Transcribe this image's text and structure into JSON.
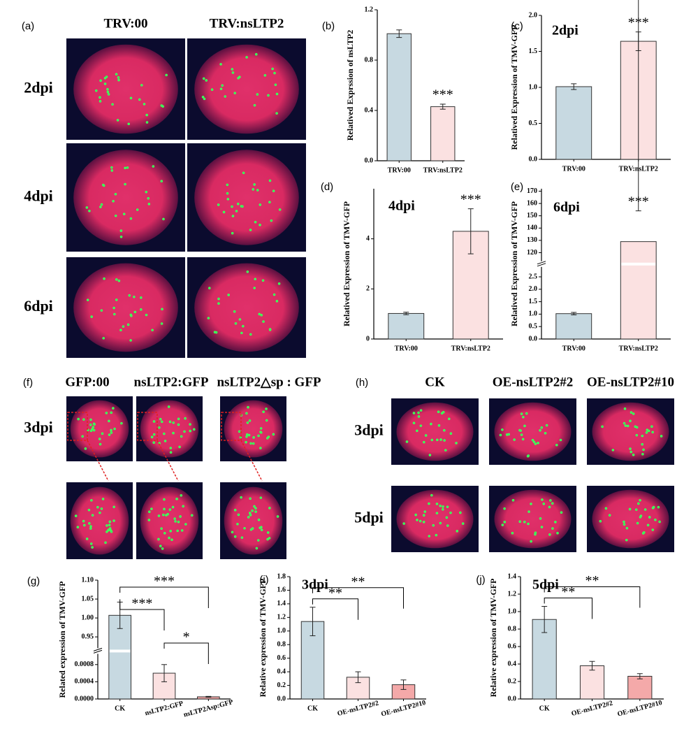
{
  "photo_panels": [
    {
      "label": "(a)",
      "columns": [
        "TRV:00",
        "TRV:nsLTP2"
      ],
      "rows": [
        "2dpi",
        "4dpi",
        "6dpi"
      ]
    },
    {
      "label": "(f)",
      "columns": [
        "GFP:00",
        "nsLTP2:GFP",
        "nsLTP2△sp : GFP"
      ],
      "rows": [
        "3dpi"
      ]
    },
    {
      "label": "(h)",
      "columns": [
        "CK",
        "OE-nsLTP2#2",
        "OE-nsLTP2#10"
      ],
      "rows": [
        "3dpi",
        "5dpi"
      ]
    }
  ],
  "chart_data": [
    {
      "type": "bar",
      "panel": "(b)",
      "ylabel": "Relatived Exprssion of nsLTP2",
      "categories": [
        "TRV:00",
        "TRV:nsLTP2"
      ],
      "values": [
        1.01,
        0.43
      ],
      "errors": [
        0.03,
        0.02
      ],
      "colors": [
        "#c7d9e1",
        "#fbe1e1"
      ],
      "ylim": [
        0,
        1.2
      ],
      "yticks": [
        {
          "value": 0,
          "label": "0.0"
        },
        0.4,
        0.8,
        1.2
      ],
      "annotations": [
        {
          "text": "***",
          "index": 1
        }
      ]
    },
    {
      "type": "bar",
      "panel": "(c)",
      "title": "2dpi",
      "ylabel": "Relatived Expression of TMV-GFP",
      "categories": [
        "TRV:00",
        "TRV:nsLTP2"
      ],
      "values": [
        1.01,
        1.64
      ],
      "errors": [
        0.04,
        0.13
      ],
      "colors": [
        "#c7d9e1",
        "#fbe1e1"
      ],
      "ylim": [
        0,
        2
      ],
      "yticks": [
        {
          "value": 0,
          "label": "0.0"
        },
        0.5,
        {
          "value": 1,
          "label": "1.0"
        },
        1.5,
        {
          "value": 2,
          "label": "2.0"
        }
      ],
      "annotations": [
        {
          "text": "***",
          "index": 1
        }
      ]
    },
    {
      "type": "bar",
      "panel": "(d)",
      "title": "4dpi",
      "ylabel": "Relatived Expression of TMV-GFP",
      "categories": [
        "TRV:00",
        "TRV:nsLTP2"
      ],
      "values": [
        1.02,
        4.3
      ],
      "errors": [
        0.05,
        0.9
      ],
      "colors": [
        "#c7d9e1",
        "#fbe1e1"
      ],
      "ylim": [
        0,
        6
      ],
      "yticks": [
        0,
        2,
        4
      ],
      "annotations": [
        {
          "text": "***",
          "index": 1
        }
      ]
    },
    {
      "type": "bar",
      "panel": "(e)",
      "title": "6dpi",
      "ylabel": "Relatived Expression of TMV-GFP",
      "categories": [
        "TRV:00",
        "TRV:nsLTP2"
      ],
      "values": [
        1.02,
        129
      ],
      "errors": [
        0.05,
        25
      ],
      "colors": [
        "#c7d9e1",
        "#fbe1e1"
      ],
      "axis_segments": [
        {
          "ylim": [
            0,
            2.9
          ],
          "yticks": [
            {
              "value": 0,
              "label": "0.0"
            },
            0.5,
            {
              "value": 1,
              "label": "1.0"
            },
            1.5,
            {
              "value": 2,
              "label": "2.0"
            },
            2.5
          ]
        },
        {
          "ylim": [
            113,
            172
          ],
          "yticks": [
            120,
            130,
            140,
            150,
            160,
            170
          ]
        }
      ],
      "annotations": [
        {
          "text": "***",
          "index": 1
        }
      ]
    },
    {
      "type": "bar",
      "panel": "(g)",
      "ylabel": "Related expression of TMV-GFP",
      "categories": [
        "CK",
        "nsLTP2:GFP",
        "nsLTP2Asp:GFP"
      ],
      "values": [
        1.007,
        0.0006,
        5e-05
      ],
      "errors": [
        0.035,
        0.0002,
        1e-05
      ],
      "colors": [
        "#c7d9e1",
        "#fbe1e1",
        "#f4a9a9"
      ],
      "axis_segments": [
        {
          "ylim": [
            0,
            0.00105
          ],
          "yticks": [
            {
              "value": 0,
              "label": "0.0000"
            },
            {
              "value": 0.0004,
              "label": "0.0004"
            },
            {
              "value": 0.0008,
              "label": "0.0008"
            }
          ]
        },
        {
          "ylim": [
            0.92,
            1.1
          ],
          "yticks": [
            0.95,
            {
              "value": 1,
              "label": "1.00"
            },
            1.05,
            {
              "value": 1.1,
              "label": "1.10"
            }
          ]
        }
      ],
      "comparisons": [
        {
          "pair": [
            0,
            1
          ],
          "text": "***"
        },
        {
          "pair": [
            0,
            2
          ],
          "text": "***"
        },
        {
          "pair": [
            1,
            2
          ],
          "text": "*"
        }
      ]
    },
    {
      "type": "bar",
      "panel": "(i)",
      "title": "3dpi",
      "ylabel": "Relative expression of TMV-GFP",
      "categories": [
        "CK",
        "OE-nsLTP2#2",
        "OE-nsLTP2#10"
      ],
      "values": [
        1.14,
        0.32,
        0.21
      ],
      "errors": [
        0.21,
        0.08,
        0.07
      ],
      "colors": [
        "#c7d9e1",
        "#fbe1e1",
        "#f4a9a9"
      ],
      "ylim": [
        0,
        1.8
      ],
      "yticks": [
        {
          "value": 0,
          "label": "0.0"
        },
        0.2,
        0.4,
        0.6,
        0.8,
        {
          "value": 1,
          "label": "1.0"
        },
        1.2,
        1.4,
        1.6,
        1.8
      ],
      "comparisons": [
        {
          "pair": [
            0,
            1
          ],
          "text": "**"
        },
        {
          "pair": [
            0,
            2
          ],
          "text": "**"
        }
      ]
    },
    {
      "type": "bar",
      "panel": "(j)",
      "title": "5dpi",
      "ylabel": "Relative expression of TMV-GFP",
      "categories": [
        "CK",
        "OE-nsLTP2#2",
        "OE-nsLTP2#10"
      ],
      "values": [
        0.91,
        0.38,
        0.26
      ],
      "errors": [
        0.15,
        0.05,
        0.03
      ],
      "colors": [
        "#c7d9e1",
        "#fbe1e1",
        "#f4a9a9"
      ],
      "ylim": [
        0,
        1.4
      ],
      "yticks": [
        {
          "value": 0,
          "label": "0.0"
        },
        0.2,
        0.4,
        0.6,
        0.8,
        {
          "value": 1,
          "label": "1.0"
        },
        1.2,
        1.4
      ],
      "comparisons": [
        {
          "pair": [
            0,
            1
          ],
          "text": "**"
        },
        {
          "pair": [
            0,
            2
          ],
          "text": "**"
        }
      ]
    }
  ]
}
